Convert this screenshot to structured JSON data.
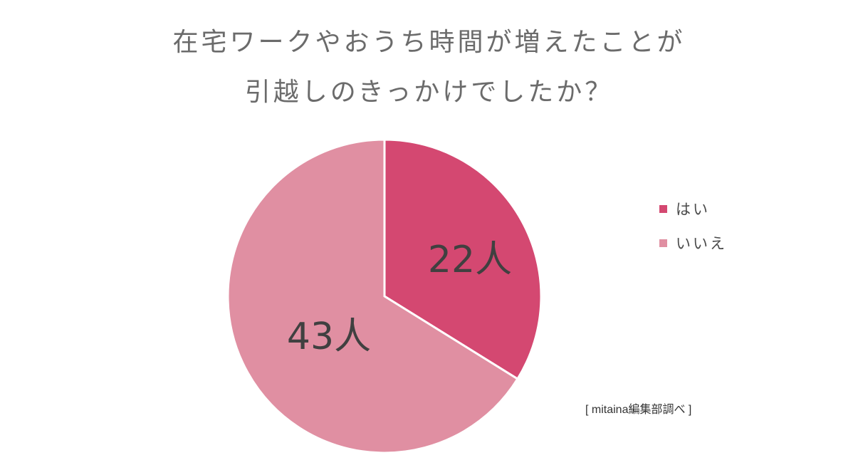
{
  "title": {
    "line1": "在宅ワークやおうち時間が増えたことが",
    "line2": "引越しのきっかけでしたか？"
  },
  "chart_data": {
    "type": "pie",
    "title": "在宅ワークやおうち時間が増えたことが引越しのきっかけでしたか？",
    "slices": [
      {
        "name": "はい",
        "value": 22,
        "label": "22人",
        "color": "#d44871"
      },
      {
        "name": "いいえ",
        "value": 43,
        "label": "43人",
        "color": "#e08fa2"
      }
    ],
    "legend_position": "right"
  },
  "legend": {
    "items": [
      {
        "label": "はい",
        "color": "#d44871"
      },
      {
        "label": "いいえ",
        "color": "#e08fa2"
      }
    ]
  },
  "source": "[ mitaina編集部調べ ]"
}
